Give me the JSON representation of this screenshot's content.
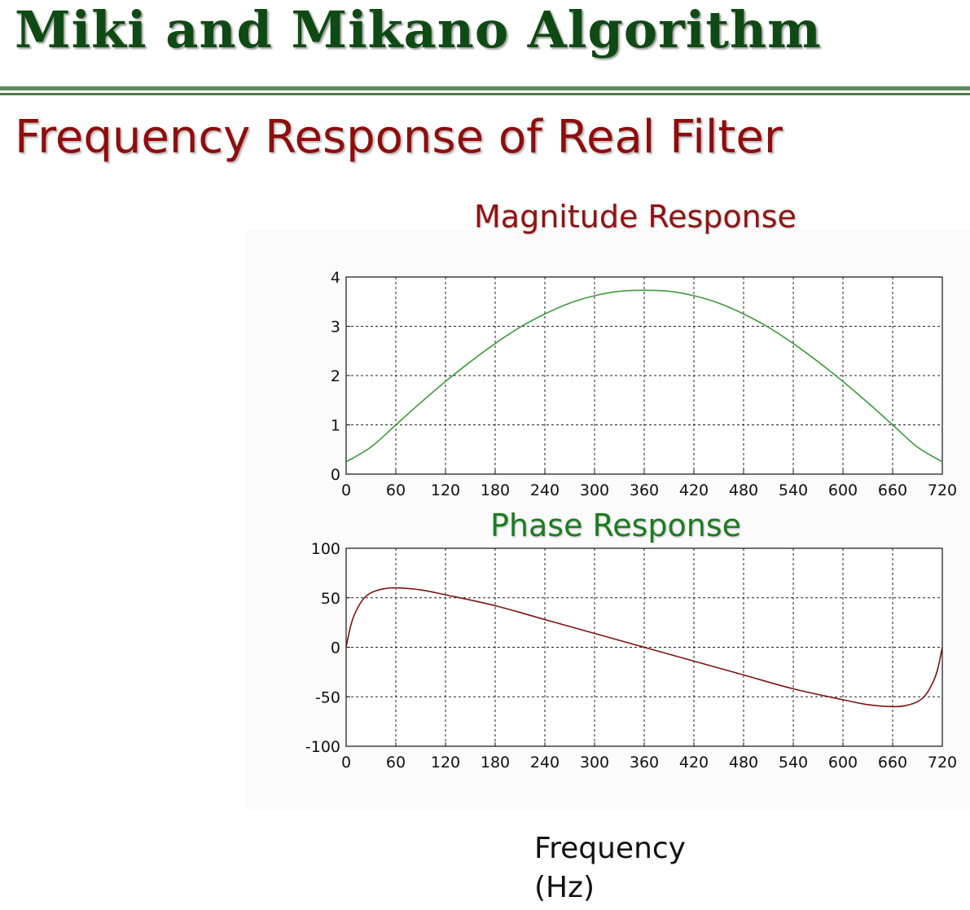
{
  "slide": {
    "title": "Miki and Mikano Algorithm",
    "subtitle": "Frequency Response of Real Filter",
    "xlabel_line1": "Frequency",
    "xlabel_line2": "(Hz)"
  },
  "colors": {
    "title": "#0f4a14",
    "subtitle": "#8e0d0d",
    "magnitude_title": "#8e1414",
    "phase_title": "#1e7a22",
    "magnitude_line": "#3f9a3c",
    "phase_line": "#7a1414"
  },
  "chart_data": [
    {
      "type": "line",
      "title": "Magnitude Response",
      "xlabel": "",
      "ylabel": "",
      "xlim": [
        0,
        720
      ],
      "ylim": [
        0,
        4
      ],
      "xticks": [
        0,
        60,
        120,
        180,
        240,
        300,
        360,
        420,
        480,
        540,
        600,
        660,
        720
      ],
      "yticks": [
        0,
        1,
        2,
        3,
        4
      ],
      "grid": true,
      "series": [
        {
          "color": "#3f9a3c",
          "x": [
            0,
            30,
            60,
            90,
            120,
            150,
            180,
            210,
            240,
            270,
            300,
            330,
            360,
            390,
            420,
            450,
            480,
            510,
            540,
            570,
            600,
            630,
            660,
            690,
            720
          ],
          "y": [
            0.25,
            0.55,
            1.0,
            1.45,
            1.88,
            2.28,
            2.65,
            2.98,
            3.25,
            3.47,
            3.62,
            3.71,
            3.73,
            3.71,
            3.62,
            3.47,
            3.25,
            2.98,
            2.65,
            2.28,
            1.88,
            1.45,
            1.0,
            0.55,
            0.25
          ]
        }
      ]
    },
    {
      "type": "line",
      "title": "Phase Response",
      "xlabel": "",
      "ylabel": "",
      "xlim": [
        0,
        720
      ],
      "ylim": [
        -100,
        100
      ],
      "xticks": [
        0,
        60,
        120,
        180,
        240,
        300,
        360,
        420,
        480,
        540,
        600,
        660,
        720
      ],
      "yticks": [
        -100,
        -50,
        0,
        50,
        100
      ],
      "grid": true,
      "series": [
        {
          "color": "#7a1414",
          "x": [
            0,
            5,
            10,
            20,
            30,
            45,
            60,
            90,
            120,
            180,
            240,
            300,
            360,
            420,
            480,
            540,
            600,
            630,
            660,
            675,
            690,
            700,
            710,
            715,
            720
          ],
          "y": [
            0,
            20,
            33,
            48,
            55,
            59,
            60,
            58,
            53,
            42,
            28,
            14,
            0,
            -14,
            -28,
            -42,
            -53,
            -58,
            -60,
            -59,
            -55,
            -48,
            -33,
            -20,
            0
          ]
        }
      ]
    }
  ]
}
